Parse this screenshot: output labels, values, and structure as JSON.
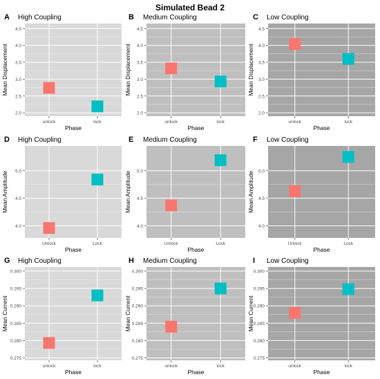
{
  "figure": {
    "title": "Simulated Bead 2"
  },
  "chart_data": [
    {
      "type": "scatter",
      "letter": "A",
      "title": "High Coupling",
      "panel_bg": "#d9d9d9",
      "xlabel": "Phase",
      "ylabel": "Mean Displacement",
      "categories": [
        "unlock",
        "lock"
      ],
      "values": [
        2.74,
        2.19
      ],
      "ylim": [
        1.9,
        4.65
      ],
      "yticks": [
        "2.0",
        "2.5",
        "3.0",
        "3.5",
        "4.0",
        "4.5"
      ],
      "colors": [
        "#f8766d",
        "#00bfc4"
      ],
      "grid": true
    },
    {
      "type": "scatter",
      "letter": "B",
      "title": "Medium Coupling",
      "panel_bg": "#bfbfbf",
      "xlabel": "Phase",
      "ylabel": "Mean Displacement",
      "categories": [
        "unlock",
        "lock"
      ],
      "values": [
        3.32,
        2.93
      ],
      "ylim": [
        1.9,
        4.65
      ],
      "yticks": [
        "2.0",
        "2.5",
        "3.0",
        "3.5",
        "4.0",
        "4.5"
      ],
      "colors": [
        "#f8766d",
        "#00bfc4"
      ],
      "grid": true
    },
    {
      "type": "scatter",
      "letter": "C",
      "title": "Low Coupling",
      "panel_bg": "#a6a6a6",
      "xlabel": "Phase",
      "ylabel": "Mean Displacement",
      "categories": [
        "unlock",
        "lock"
      ],
      "values": [
        4.04,
        3.6
      ],
      "ylim": [
        1.9,
        4.65
      ],
      "yticks": [
        "2.0",
        "2.5",
        "3.0",
        "3.5",
        "4.0",
        "4.5"
      ],
      "colors": [
        "#f8766d",
        "#00bfc4"
      ],
      "grid": true
    },
    {
      "type": "scatter",
      "letter": "D",
      "title": "High Coupling",
      "panel_bg": "#d9d9d9",
      "xlabel": "Phase",
      "ylabel": "Mean Amplitude",
      "categories": [
        "Unlock",
        "Lock"
      ],
      "values": [
        3.96,
        4.84
      ],
      "ylim": [
        3.78,
        5.45
      ],
      "yticks": [
        "4.0",
        "4.5",
        "5.0"
      ],
      "colors": [
        "#f8766d",
        "#00bfc4"
      ],
      "grid": true
    },
    {
      "type": "scatter",
      "letter": "E",
      "title": "Medium Coupling",
      "panel_bg": "#bfbfbf",
      "xlabel": "Phase",
      "ylabel": "Mean Amplitude",
      "categories": [
        "Unlock",
        "Lock"
      ],
      "values": [
        4.37,
        5.19
      ],
      "ylim": [
        3.78,
        5.45
      ],
      "yticks": [
        "4.0",
        "4.5",
        "5.0"
      ],
      "colors": [
        "#f8766d",
        "#00bfc4"
      ],
      "grid": true
    },
    {
      "type": "scatter",
      "letter": "F",
      "title": "Low Coupling",
      "panel_bg": "#a6a6a6",
      "xlabel": "Phase",
      "ylabel": "Mean Amplitude",
      "categories": [
        "Unlock",
        "Lock"
      ],
      "values": [
        4.63,
        5.25
      ],
      "ylim": [
        3.78,
        5.45
      ],
      "yticks": [
        "4.0",
        "4.5",
        "5.0"
      ],
      "colors": [
        "#f8766d",
        "#00bfc4"
      ],
      "grid": true
    },
    {
      "type": "scatter",
      "letter": "G",
      "title": "High Coupling",
      "panel_bg": "#d9d9d9",
      "xlabel": "Phase",
      "ylabel": "Mean Current",
      "categories": [
        "unlock",
        "lock"
      ],
      "values": [
        0.2793,
        0.293
      ],
      "ylim": [
        0.2743,
        0.3012
      ],
      "yticks": [
        "0.275",
        "0.280",
        "0.285",
        "0.290",
        "0.295",
        "0.300"
      ],
      "colors": [
        "#f8766d",
        "#00bfc4"
      ],
      "grid": true
    },
    {
      "type": "scatter",
      "letter": "H",
      "title": "Medium Coupling",
      "panel_bg": "#bfbfbf",
      "xlabel": "Phase",
      "ylabel": "Mean Current",
      "categories": [
        "unlock",
        "lock"
      ],
      "values": [
        0.284,
        0.295
      ],
      "ylim": [
        0.2743,
        0.3012
      ],
      "yticks": [
        "0.275",
        "0.280",
        "0.285",
        "0.290",
        "0.295",
        "0.300"
      ],
      "colors": [
        "#f8766d",
        "#00bfc4"
      ],
      "grid": true
    },
    {
      "type": "scatter",
      "letter": "I",
      "title": "Low Coupling",
      "panel_bg": "#a6a6a6",
      "xlabel": "Phase",
      "ylabel": "Mean Current",
      "categories": [
        "unlock",
        "lock"
      ],
      "values": [
        0.288,
        0.2948
      ],
      "ylim": [
        0.2743,
        0.3012
      ],
      "yticks": [
        "0.275",
        "0.280",
        "0.285",
        "0.290",
        "0.295",
        "0.300"
      ],
      "colors": [
        "#f8766d",
        "#00bfc4"
      ],
      "grid": true
    }
  ]
}
